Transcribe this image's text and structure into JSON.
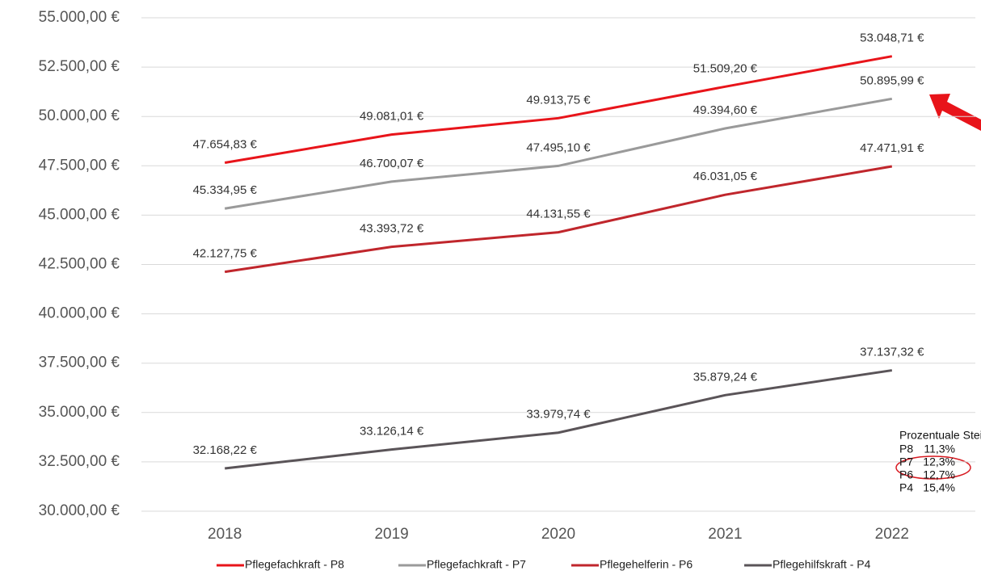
{
  "chart_data": {
    "type": "line",
    "categories": [
      "2018",
      "2019",
      "2020",
      "2021",
      "2022"
    ],
    "series": [
      {
        "name": "Pflegefachkraft - P8",
        "color": "#e8141a",
        "values": [
          47654.83,
          49081.01,
          49913.75,
          51509.2,
          53048.71
        ],
        "value_labels": [
          "47.654,83 €",
          "49.081,01 €",
          "49.913,75 €",
          "51.509,20 €",
          "53.048,71 €"
        ]
      },
      {
        "name": "Pflegefachkraft - P7",
        "color": "#9a9a9a",
        "values": [
          45334.95,
          46700.07,
          47495.1,
          49394.6,
          50895.99
        ],
        "value_labels": [
          "45.334,95 €",
          "46.700,07 €",
          "47.495,10 €",
          "49.394,60 €",
          "50.895,99 €"
        ]
      },
      {
        "name": "Pflegehelferin - P6",
        "color": "#c0262c",
        "values": [
          42127.75,
          43393.72,
          44131.55,
          46031.05,
          47471.91
        ],
        "value_labels": [
          "42.127,75 €",
          "43.393,72 €",
          "44.131,55 €",
          "46.031,05 €",
          "47.471,91 €"
        ]
      },
      {
        "name": "Pflegehilfskraft - P4",
        "color": "#5a5458",
        "values": [
          32168.22,
          33126.14,
          33979.74,
          35879.24,
          37137.32
        ],
        "value_labels": [
          "32.168,22 €",
          "33.126,14 €",
          "33.979,74 €",
          "35.879,24 €",
          "37.137,32 €"
        ]
      }
    ],
    "ylim": [
      30000,
      55000
    ],
    "yticks": [
      {
        "value": 30000,
        "label": "30.000,00 €"
      },
      {
        "value": 32500,
        "label": "32.500,00 €"
      },
      {
        "value": 35000,
        "label": "35.000,00 €"
      },
      {
        "value": 37500,
        "label": "37.500,00 €"
      },
      {
        "value": 40000,
        "label": "40.000,00 €"
      },
      {
        "value": 42500,
        "label": "42.500,00 €"
      },
      {
        "value": 45000,
        "label": "45.000,00 €"
      },
      {
        "value": 47500,
        "label": "47.500,00 €"
      },
      {
        "value": 50000,
        "label": "50.000,00 €"
      },
      {
        "value": 52500,
        "label": "52.500,00 €"
      },
      {
        "value": 55000,
        "label": "55.000,00 €"
      }
    ],
    "grid": true,
    "legend": "bottom",
    "annotation": {
      "title": "Prozentuale Steigerung:",
      "rows": [
        [
          "P8",
          "11,3%"
        ],
        [
          "P7",
          "12,3%"
        ],
        [
          "P6",
          "12,7%"
        ],
        [
          "P4",
          "15,4%"
        ]
      ]
    }
  }
}
